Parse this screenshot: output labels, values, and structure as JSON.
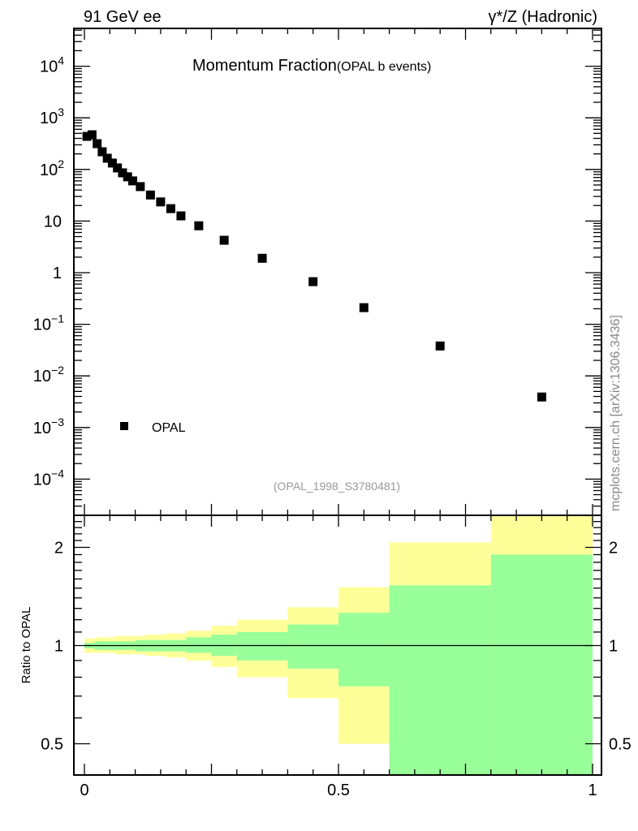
{
  "header": {
    "left": "91 GeV ee",
    "right": "γ*/Z (Hadronic)"
  },
  "watermark": "mcplots.cern.ch [arXiv:1306.3436]",
  "chart_data": [
    {
      "type": "scatter",
      "title": "Momentum Fraction",
      "subtitle": "(OPAL b events)",
      "analysis_label": "(OPAL_1998_S3780481)",
      "xlabel": "",
      "ylabel": "",
      "yscale": "log",
      "xlim": [
        0,
        1
      ],
      "ylim": [
        5e-05,
        55000
      ],
      "ytick_labels": [
        {
          "value": 10000,
          "base": "10",
          "exp": "4"
        },
        {
          "value": 1000,
          "base": "10",
          "exp": "3"
        },
        {
          "value": 100,
          "base": "10",
          "exp": "2"
        },
        {
          "value": 10,
          "base": "10",
          "exp": ""
        },
        {
          "value": 1,
          "base": "1",
          "exp": ""
        },
        {
          "value": 0.1,
          "base": "10",
          "exp": "−1"
        },
        {
          "value": 0.01,
          "base": "10",
          "exp": "−2"
        },
        {
          "value": 0.001,
          "base": "10",
          "exp": "−3"
        },
        {
          "value": 0.0001,
          "base": "10",
          "exp": "−4"
        }
      ],
      "legend": {
        "placement": "bottom-left",
        "entries": [
          "OPAL"
        ]
      },
      "series": [
        {
          "name": "OPAL",
          "x": [
            0.005,
            0.015,
            0.025,
            0.035,
            0.045,
            0.055,
            0.065,
            0.075,
            0.085,
            0.095,
            0.11,
            0.13,
            0.15,
            0.17,
            0.19,
            0.225,
            0.275,
            0.35,
            0.45,
            0.55,
            0.7,
            0.9
          ],
          "y": [
            437,
            470,
            316,
            220,
            165,
            133,
            107,
            86,
            72,
            60,
            46.5,
            32,
            23.5,
            17.4,
            12.6,
            8.1,
            4.25,
            1.9,
            0.67,
            0.21,
            0.038,
            0.0039
          ]
        }
      ]
    },
    {
      "type": "area",
      "ylabel": "Ratio to OPAL",
      "yscale": "log",
      "xlim": [
        0,
        1
      ],
      "ylim": [
        0.4,
        2.5
      ],
      "ytick_labels": [
        "2",
        "1",
        "0.5"
      ],
      "xtick_labels": [
        "0",
        "0.5",
        "1"
      ],
      "bin_edges": [
        0,
        0.01,
        0.02,
        0.03,
        0.04,
        0.05,
        0.06,
        0.07,
        0.08,
        0.09,
        0.1,
        0.12,
        0.14,
        0.16,
        0.18,
        0.2,
        0.25,
        0.3,
        0.4,
        0.5,
        0.6,
        0.8,
        1.0
      ],
      "band_2sigma": {
        "color": "#ffff99",
        "hi": [
          1.05,
          1.05,
          1.06,
          1.06,
          1.06,
          1.06,
          1.07,
          1.07,
          1.07,
          1.07,
          1.07,
          1.08,
          1.08,
          1.09,
          1.09,
          1.11,
          1.15,
          1.2,
          1.31,
          1.51,
          2.07,
          2.6
        ],
        "lo": [
          0.95,
          0.95,
          0.95,
          0.95,
          0.95,
          0.95,
          0.94,
          0.94,
          0.94,
          0.94,
          0.94,
          0.93,
          0.93,
          0.92,
          0.92,
          0.9,
          0.86,
          0.8,
          0.69,
          0.5,
          0.47,
          0.3
        ]
      },
      "band_1sigma": {
        "color": "#99ff99",
        "hi": [
          1.02,
          1.02,
          1.03,
          1.03,
          1.03,
          1.03,
          1.03,
          1.03,
          1.03,
          1.03,
          1.04,
          1.04,
          1.04,
          1.04,
          1.04,
          1.06,
          1.08,
          1.1,
          1.16,
          1.26,
          1.53,
          1.9
        ],
        "lo": [
          0.98,
          0.98,
          0.97,
          0.97,
          0.97,
          0.97,
          0.97,
          0.97,
          0.97,
          0.97,
          0.96,
          0.96,
          0.96,
          0.96,
          0.96,
          0.95,
          0.93,
          0.9,
          0.85,
          0.75,
          0.3,
          0.3
        ]
      },
      "reference_line": 1
    }
  ]
}
